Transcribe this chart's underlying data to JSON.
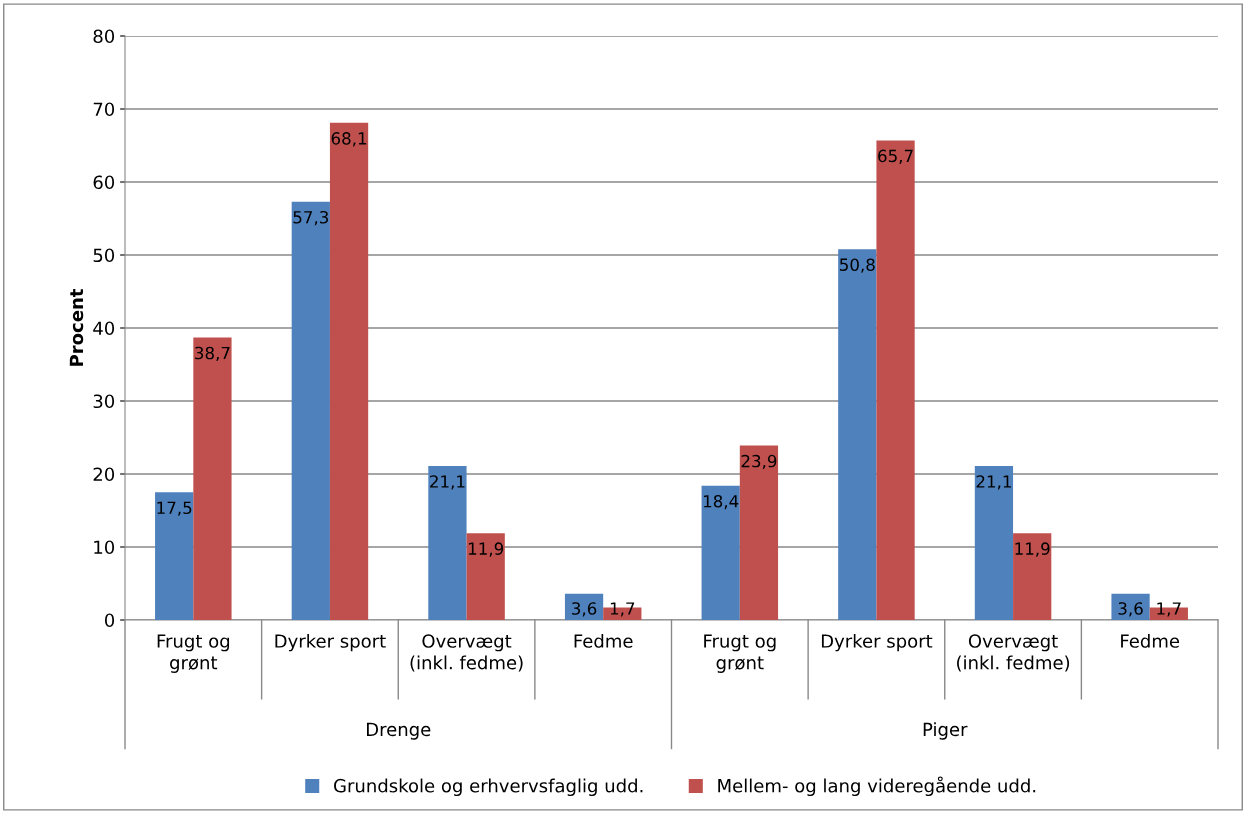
{
  "chart_data": {
    "type": "bar",
    "ylabel": "Procent",
    "categories": [
      "Frugt og\ngrønt",
      "Dyrker sport",
      "Overvægt\n(inkl. fedme)",
      "Fedme",
      "Frugt og\ngrønt",
      "Dyrker sport",
      "Overvægt\n(inkl. fedme)",
      "Fedme"
    ],
    "series": [
      {
        "name": "Grundskole og erhvervsfaglig udd.",
        "color": "#4f81bd",
        "values": [
          17.5,
          57.3,
          21.1,
          3.6,
          18.4,
          50.8,
          21.1,
          3.6
        ],
        "value_labels": [
          "17,5",
          "57,3",
          "21,1",
          "3,6",
          "18,4",
          "50,8",
          "21,1",
          "3,6"
        ]
      },
      {
        "name": "Mellem- og lang videregående udd.",
        "color": "#c0504d",
        "values": [
          38.7,
          68.1,
          11.9,
          1.7,
          23.9,
          65.7,
          11.9,
          1.7
        ],
        "value_labels": [
          "38,7",
          "68,1",
          "11,9",
          "1,7",
          "23,9",
          "65,7",
          "11,9",
          "1,7"
        ]
      }
    ],
    "annotations": [
      "Drenge",
      "Piger"
    ],
    "ylim": [
      0,
      80
    ],
    "yticks": [
      0,
      10,
      20,
      30,
      40,
      50,
      60,
      70,
      80
    ],
    "grid": "y",
    "legend": "bottom"
  }
}
